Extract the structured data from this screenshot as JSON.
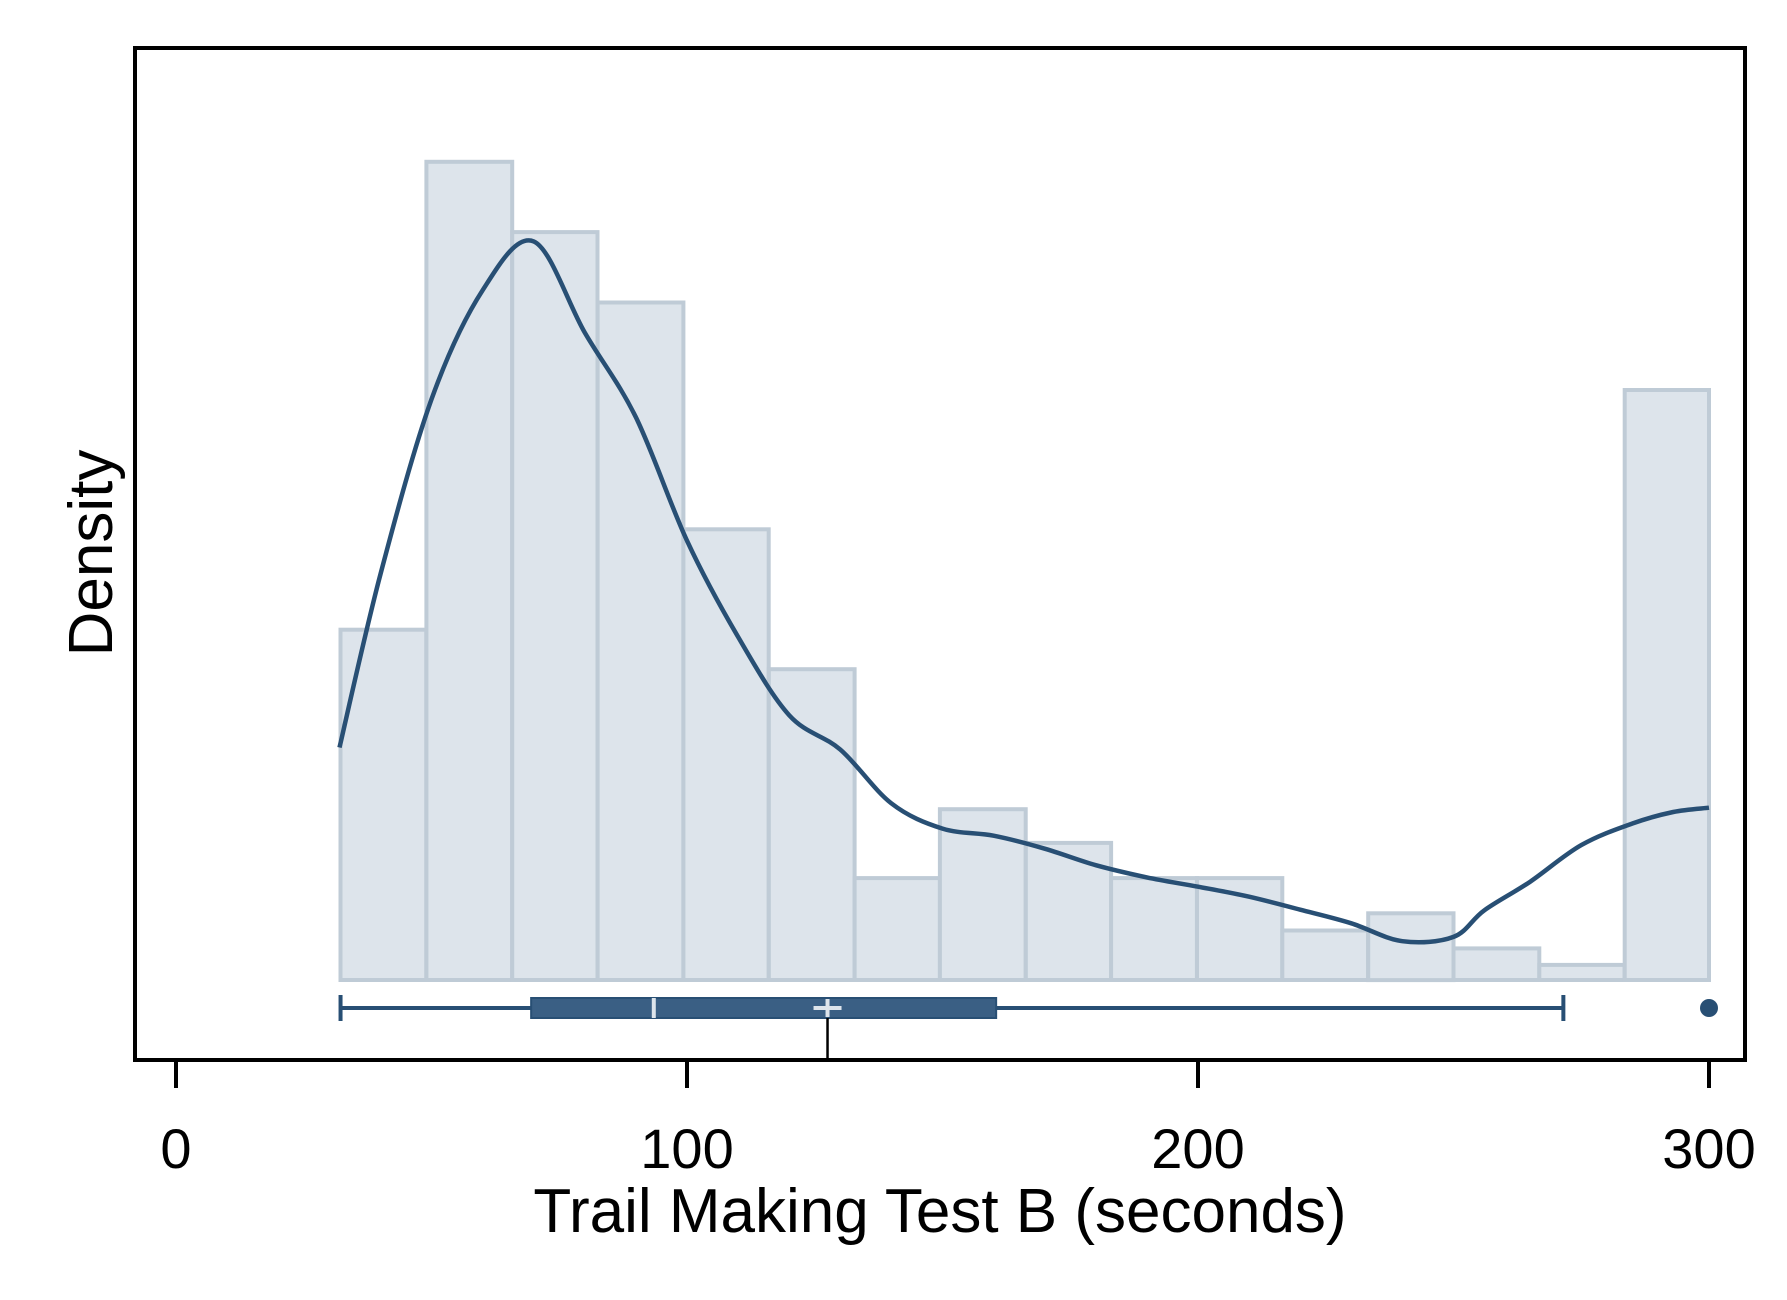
{
  "chart_data": {
    "type": "histogram",
    "title": "",
    "xlabel": "Trail Making Test B (seconds)",
    "ylabel": "Density",
    "xlim": [
      0,
      310
    ],
    "x_ticks": [
      {
        "value": 0,
        "label": "0"
      },
      {
        "value": 100,
        "label": "100"
      },
      {
        "value": 200,
        "label": "200"
      },
      {
        "value": 300,
        "label": "300"
      }
    ],
    "y_ticks_shown": false,
    "grid": false,
    "legend": "none",
    "bins": [
      {
        "x0": 32.2,
        "x1": 49.0,
        "density": 0.00488
      },
      {
        "x0": 49.0,
        "x1": 65.8,
        "density": 0.0114
      },
      {
        "x0": 65.8,
        "x1": 82.5,
        "density": 0.01042
      },
      {
        "x0": 82.5,
        "x1": 99.3,
        "density": 0.00944
      },
      {
        "x0": 99.3,
        "x1": 116.0,
        "density": 0.00628
      },
      {
        "x0": 116.0,
        "x1": 132.8,
        "density": 0.00433
      },
      {
        "x0": 132.8,
        "x1": 149.5,
        "density": 0.00142
      },
      {
        "x0": 149.5,
        "x1": 166.3,
        "density": 0.00238
      },
      {
        "x0": 166.3,
        "x1": 183.0,
        "density": 0.00191
      },
      {
        "x0": 183.0,
        "x1": 199.8,
        "density": 0.00142
      },
      {
        "x0": 199.8,
        "x1": 216.5,
        "density": 0.00142
      },
      {
        "x0": 216.5,
        "x1": 233.3,
        "density": 0.00069
      },
      {
        "x0": 233.3,
        "x1": 250.0,
        "density": 0.00093
      },
      {
        "x0": 250.0,
        "x1": 266.8,
        "density": 0.00044
      },
      {
        "x0": 266.8,
        "x1": 283.5,
        "density": 0.00021
      },
      {
        "x0": 283.5,
        "x1": 300.0,
        "density": 0.00822
      }
    ],
    "kde": {
      "x": [
        32,
        40,
        50,
        60,
        70,
        80,
        90,
        100,
        110,
        120,
        130,
        140,
        150,
        160,
        170,
        180,
        190,
        200,
        210,
        220,
        230,
        240,
        250,
        256,
        265,
        275,
        285,
        293,
        300
      ],
      "y": [
        0.00324,
        0.00565,
        0.00809,
        0.00961,
        0.01029,
        0.00902,
        0.00784,
        0.00612,
        0.00478,
        0.00369,
        0.00321,
        0.00246,
        0.00211,
        0.00201,
        0.00183,
        0.0016,
        0.00143,
        0.0013,
        0.00116,
        0.00098,
        0.00079,
        0.00054,
        0.0006,
        0.00097,
        0.00137,
        0.00188,
        0.00218,
        0.00234,
        0.0024
      ]
    },
    "boxplot": {
      "whisker_low": 32.2,
      "q1": 69.5,
      "median": 93.5,
      "mean": 127.5,
      "q3": 160.5,
      "whisker_high": 271.5,
      "outliers": [
        300
      ]
    },
    "y_max": 0.0124,
    "colors": {
      "bar_fill": "#dde4eb",
      "bar_stroke": "#bfcbd6",
      "line": "#284f74",
      "box_fill": "#3a5f84",
      "frame": "#000000"
    }
  }
}
